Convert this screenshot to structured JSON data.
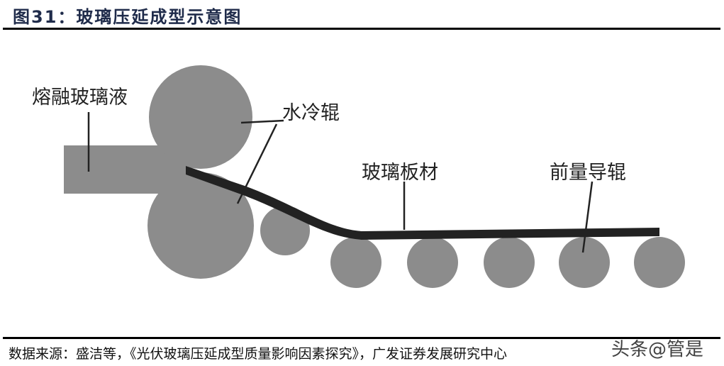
{
  "title": "图31：玻璃压延成型示意图",
  "diagram": {
    "labels": {
      "molten_glass": "熔融玻璃液",
      "cooling_roller": "水冷辊",
      "glass_sheet": "玻璃板材",
      "guide_roller": "前量导辊"
    },
    "colors": {
      "roller": "#8c8c8c",
      "sheet": "#222222",
      "feed": "#8c8c8c"
    }
  },
  "source": "数据来源：盛洁等，《光伏玻璃压延成型质量影响因素探究》，广发证券发展研究中心",
  "watermark": "头条@管是"
}
